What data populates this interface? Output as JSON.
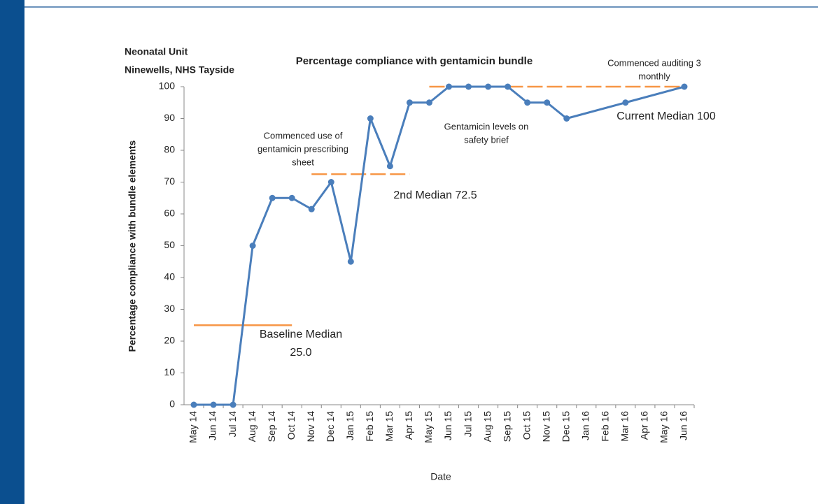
{
  "chart_data": {
    "type": "line",
    "title": "Percentage compliance with gentamicin bundle",
    "header_lines": [
      "Neonatal Unit",
      "Ninewells, NHS Tayside"
    ],
    "y_label": "Percentage compliance with bundle elements",
    "x_label": "Date",
    "categories": [
      "May 14",
      "Jun 14",
      "Jul 14",
      "Aug 14",
      "Sep 14",
      "Oct 14",
      "Nov 14",
      "Dec 14",
      "Jan 15",
      "Feb 15",
      "Mar 15",
      "Apr 15",
      "May 15",
      "Jun 15",
      "Jul 15",
      "Aug 15",
      "Sep 15",
      "Oct 15",
      "Nov 15",
      "Dec 15",
      "Jan 16",
      "Feb 16",
      "Mar 16",
      "Apr 16",
      "May 16",
      "Jun 16"
    ],
    "series": [
      {
        "name": "Compliance",
        "color": "#4a7ebb",
        "values": [
          0,
          0,
          0,
          50,
          65,
          65,
          61.5,
          70,
          45,
          90,
          75,
          95,
          95,
          100,
          100,
          100,
          100,
          95,
          95,
          90,
          null,
          null,
          95,
          null,
          null,
          100
        ]
      }
    ],
    "ylim": [
      0,
      100
    ],
    "yticks": [
      0,
      10,
      20,
      30,
      40,
      50,
      60,
      70,
      80,
      90,
      100
    ],
    "medians": [
      {
        "name": "Baseline Median",
        "value": 25,
        "value_label": "25.0",
        "start": "May 14",
        "end": "Oct 14",
        "style": "solid",
        "color": "#f79646"
      },
      {
        "name": "2nd Median",
        "value": 72.5,
        "start": "Nov 14",
        "end": "Apr 15",
        "style": "dashed",
        "color": "#f79646"
      },
      {
        "name": "Current Median",
        "value": 100,
        "start": "May 15",
        "end": "Jun 16",
        "style": "dashed",
        "color": "#f79646"
      }
    ],
    "annotations": [
      {
        "lines": [
          "Commenced use of",
          "gentamicin prescribing",
          "sheet"
        ]
      },
      {
        "lines": [
          "Gentamicin levels on",
          "safety brief"
        ]
      },
      {
        "lines": [
          "Commenced auditing 3",
          "monthly"
        ]
      }
    ]
  }
}
